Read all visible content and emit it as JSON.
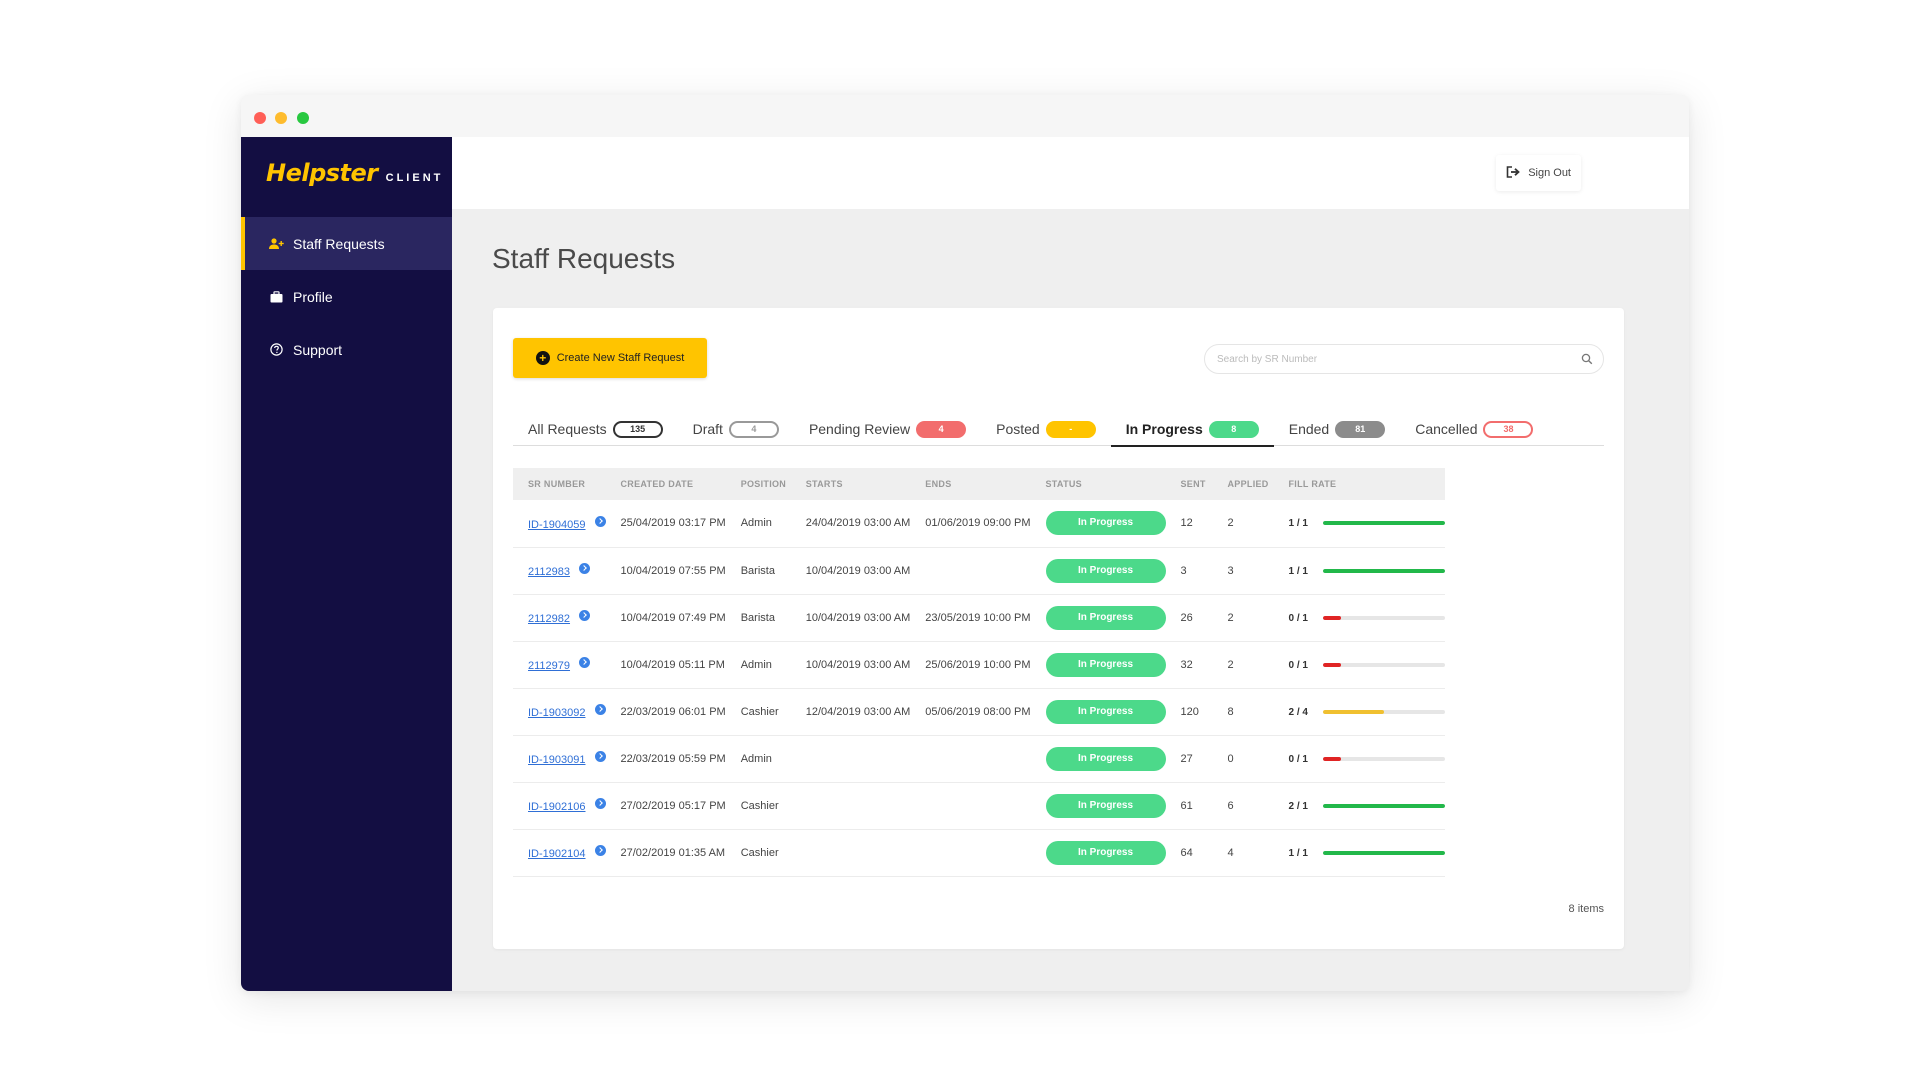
{
  "app": {
    "logo_main": "Helpster",
    "logo_sub": "CLIENT",
    "accent": "#ffc400",
    "sidebar_bg": "#130e42"
  },
  "sidebar": {
    "items": [
      {
        "label": "Staff Requests",
        "icon": "add-user-icon",
        "active": true
      },
      {
        "label": "Profile",
        "icon": "briefcase-icon",
        "active": false
      },
      {
        "label": "Support",
        "icon": "question-circle-icon",
        "active": false
      }
    ]
  },
  "header": {
    "signout_label": "Sign Out"
  },
  "page": {
    "title": "Staff Requests"
  },
  "toolbar": {
    "create_label": "Create New Staff Request",
    "search_placeholder": "Search by SR Number"
  },
  "tabs": [
    {
      "label": "All Requests",
      "count": "135",
      "color": "#333333",
      "active": false
    },
    {
      "label": "Draft",
      "count": "4",
      "color": "#999999",
      "active": false
    },
    {
      "label": "Pending Review",
      "count": "4",
      "color": "#f26d6d",
      "active": false
    },
    {
      "label": "Posted",
      "count": "-",
      "color": "#ffc400",
      "active": false
    },
    {
      "label": "In Progress",
      "count": "8",
      "color": "#4cd98a",
      "active": true
    },
    {
      "label": "Ended",
      "count": "81",
      "color": "#8c8c8c",
      "active": false
    },
    {
      "label": "Cancelled",
      "count": "38",
      "color": "#f26d6d",
      "active": false
    }
  ],
  "table": {
    "columns": [
      "SR NUMBER",
      "CREATED DATE",
      "POSITION",
      "STARTS",
      "ENDS",
      "STATUS",
      "SENT",
      "APPLIED",
      "FILL RATE"
    ],
    "rows": [
      {
        "sr": "ID-1904059",
        "created": "25/04/2019 03:17 PM",
        "position": "Admin",
        "starts": "24/04/2019 03:00 AM",
        "ends": "01/06/2019 09:00 PM",
        "status": "In Progress",
        "sent": "12",
        "applied": "2",
        "fill": "1 / 1",
        "fill_ratio": 1.0,
        "fill_color": "#22b84a"
      },
      {
        "sr": "2112983",
        "created": "10/04/2019 07:55 PM",
        "position": "Barista",
        "starts": "10/04/2019 03:00 AM",
        "ends": "",
        "status": "In Progress",
        "sent": "3",
        "applied": "3",
        "fill": "1 / 1",
        "fill_ratio": 1.0,
        "fill_color": "#22b84a"
      },
      {
        "sr": "2112982",
        "created": "10/04/2019 07:49 PM",
        "position": "Barista",
        "starts": "10/04/2019 03:00 AM",
        "ends": "23/05/2019 10:00 PM",
        "status": "In Progress",
        "sent": "26",
        "applied": "2",
        "fill": "0 / 1",
        "fill_ratio": 0.15,
        "fill_color": "#e02424"
      },
      {
        "sr": "2112979",
        "created": "10/04/2019 05:11 PM",
        "position": "Admin",
        "starts": "10/04/2019 03:00 AM",
        "ends": "25/06/2019 10:00 PM",
        "status": "In Progress",
        "sent": "32",
        "applied": "2",
        "fill": "0 / 1",
        "fill_ratio": 0.15,
        "fill_color": "#e02424"
      },
      {
        "sr": "ID-1903092",
        "created": "22/03/2019 06:01 PM",
        "position": "Cashier",
        "starts": "12/04/2019 03:00 AM",
        "ends": "05/06/2019 08:00 PM",
        "status": "In Progress",
        "sent": "120",
        "applied": "8",
        "fill": "2 / 4",
        "fill_ratio": 0.5,
        "fill_color": "#f0c030"
      },
      {
        "sr": "ID-1903091",
        "created": "22/03/2019 05:59 PM",
        "position": "Admin",
        "starts": "",
        "ends": "",
        "status": "In Progress",
        "sent": "27",
        "applied": "0",
        "fill": "0 / 1",
        "fill_ratio": 0.15,
        "fill_color": "#e02424"
      },
      {
        "sr": "ID-1902106",
        "created": "27/02/2019 05:17 PM",
        "position": "Cashier",
        "starts": "",
        "ends": "",
        "status": "In Progress",
        "sent": "61",
        "applied": "6",
        "fill": "2 / 1",
        "fill_ratio": 1.0,
        "fill_color": "#22b84a"
      },
      {
        "sr": "ID-1902104",
        "created": "27/02/2019 01:35 AM",
        "position": "Cashier",
        "starts": "",
        "ends": "",
        "status": "In Progress",
        "sent": "64",
        "applied": "4",
        "fill": "1 / 1",
        "fill_ratio": 1.0,
        "fill_color": "#22b84a"
      }
    ]
  },
  "footer": {
    "items_label": "8 items"
  }
}
